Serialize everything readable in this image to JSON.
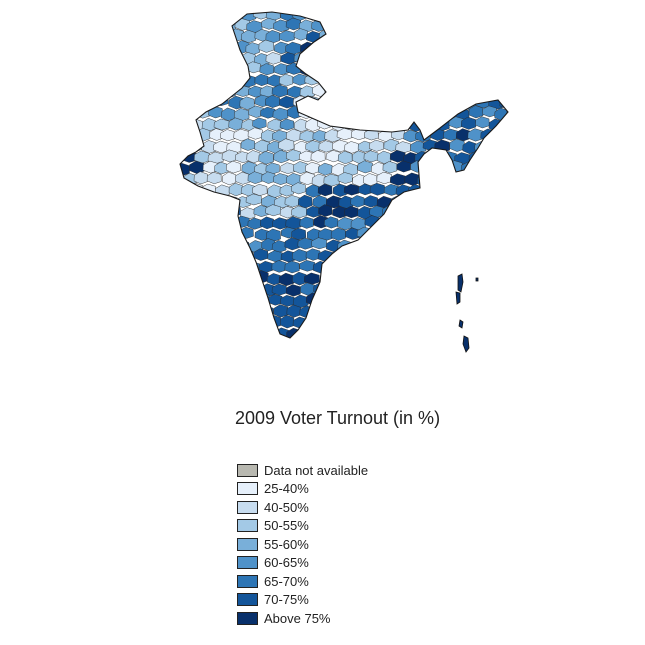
{
  "map": {
    "region": "India",
    "title": "2009 Voter Turnout (in %)",
    "bins": [
      {
        "label": "Data not available",
        "color": "#b8b8b0"
      },
      {
        "label": "25-40%",
        "color": "#e6f0fb"
      },
      {
        "label": "40-50%",
        "color": "#c7dcef"
      },
      {
        "label": "50-55%",
        "color": "#a3c9e6"
      },
      {
        "label": "55-60%",
        "color": "#79afd9"
      },
      {
        "label": "60-65%",
        "color": "#4f92c9"
      },
      {
        "label": "65-70%",
        "color": "#2d75b5"
      },
      {
        "label": "70-75%",
        "color": "#13559a"
      },
      {
        "label": "Above 75%",
        "color": "#08306b"
      }
    ]
  }
}
